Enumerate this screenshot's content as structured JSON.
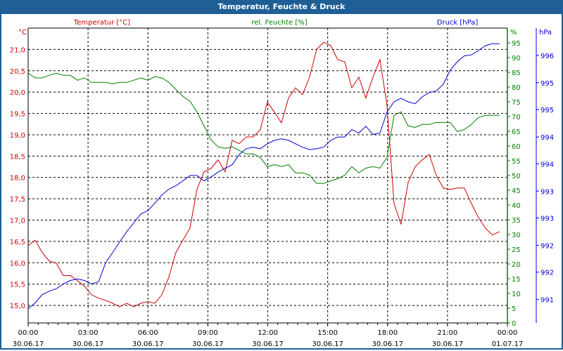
{
  "window": {
    "title": "Temperatur, Feucht e & Druck"
  },
  "chart_data": {
    "type": "line",
    "title": "Temperatur, Feuchte & Druck",
    "start": "00:00 30.06.17",
    "sample_interval_minutes": 21.14,
    "x_ticks": [
      {
        "time": "00:00",
        "date": "30.06.17",
        "hour": 0
      },
      {
        "time": "03:00",
        "date": "30.06.17",
        "hour": 3
      },
      {
        "time": "06:00",
        "date": "30.06.17",
        "hour": 6
      },
      {
        "time": "09:00",
        "date": "30.06.17",
        "hour": 9
      },
      {
        "time": "12:00",
        "date": "30.06.17",
        "hour": 12
      },
      {
        "time": "15:00",
        "date": "30.06.17",
        "hour": 15
      },
      {
        "time": "18:00",
        "date": "30.06.17",
        "hour": 18
      },
      {
        "time": "21:00",
        "date": "30.06.17",
        "hour": 21
      },
      {
        "time": "00:00",
        "date": "01.07.17",
        "hour": 24
      }
    ],
    "xlim_hours": [
      0,
      24
    ],
    "grid": true,
    "axes": {
      "temperature": {
        "label": "Temperatur [°C]",
        "unit": "°C",
        "color": "#cc0000",
        "ylim": [
          14.59,
          21.5
        ],
        "ticks": [
          15.0,
          15.5,
          16.0,
          16.5,
          17.0,
          17.5,
          18.0,
          18.5,
          19.0,
          19.5,
          20.0,
          20.5,
          21.0
        ],
        "tick_labels": [
          "15,0",
          "15,5",
          "16,0",
          "16,5",
          "17,0",
          "17,5",
          "18,0",
          "18,5",
          "19,0",
          "19,5",
          "20,0",
          "20,5",
          "21,0"
        ]
      },
      "humidity": {
        "label": "rel. Feuchte [%]",
        "unit": "%",
        "color": "#008000",
        "ylim": [
          0,
          100
        ],
        "ticks": [
          0,
          5,
          10,
          15,
          20,
          25,
          30,
          35,
          40,
          45,
          50,
          55,
          60,
          65,
          70,
          75,
          80,
          85,
          90,
          95
        ],
        "tick_labels": [
          "0",
          "5",
          "10",
          "15",
          "20",
          "25",
          "30",
          "35",
          "40",
          "45",
          "50",
          "55",
          "60",
          "65",
          "70",
          "75",
          "80",
          "85",
          "90",
          "95"
        ]
      },
      "pressure": {
        "label": "Druck [hPa]",
        "unit": "hPa",
        "color": "#0000cc",
        "ylim": [
          990.52,
          996.56
        ],
        "ticks": [
          991.0,
          991.56,
          992.11,
          992.67,
          993.22,
          993.78,
          994.33,
          994.89,
          995.44,
          996.0
        ],
        "tick_labels": [
          "991",
          "992",
          "992",
          "993",
          "993",
          "994",
          "994",
          "995",
          "995",
          "996"
        ]
      }
    },
    "series": [
      {
        "name": "Temperatur",
        "axis": "temperature",
        "color": "#cc0000",
        "values": [
          16.4,
          16.53,
          16.24,
          16.04,
          15.99,
          15.7,
          15.7,
          15.58,
          15.45,
          15.25,
          15.17,
          15.12,
          15.05,
          14.97,
          15.05,
          14.97,
          15.05,
          15.09,
          15.05,
          15.25,
          15.66,
          16.24,
          16.53,
          16.81,
          17.72,
          18.13,
          18.21,
          18.41,
          18.13,
          18.87,
          18.79,
          18.95,
          18.95,
          19.12,
          19.77,
          19.53,
          19.28,
          19.86,
          20.1,
          19.94,
          20.35,
          21.0,
          21.17,
          21.09,
          20.76,
          20.71,
          20.1,
          20.35,
          19.86,
          20.35,
          20.76,
          19.69,
          17.39,
          16.9,
          17.88,
          18.25,
          18.41,
          18.54,
          18.05,
          17.75,
          17.72,
          17.75,
          17.75,
          17.39,
          17.06,
          16.81,
          16.65,
          16.73
        ]
      },
      {
        "name": "rel. Feuchte",
        "axis": "humidity",
        "color": "#008000",
        "values": [
          84.7,
          83.1,
          83.1,
          84.0,
          84.7,
          84.0,
          84.0,
          82.3,
          83.1,
          81.6,
          81.6,
          81.6,
          81.1,
          81.6,
          81.6,
          82.3,
          83.1,
          82.3,
          83.5,
          83.1,
          81.6,
          79.2,
          76.8,
          75.2,
          71.6,
          66.8,
          62.1,
          59.7,
          59.2,
          59.7,
          58.5,
          57.3,
          57.3,
          56.1,
          53.0,
          53.7,
          53.0,
          53.7,
          50.9,
          50.9,
          50.1,
          47.3,
          47.3,
          48.2,
          48.9,
          50.1,
          53.0,
          50.9,
          52.5,
          53.0,
          52.5,
          56.1,
          70.4,
          71.6,
          66.8,
          66.3,
          67.3,
          67.3,
          68.0,
          68.0,
          68.0,
          64.9,
          65.6,
          67.3,
          69.7,
          70.4,
          70.4,
          70.4
        ]
      },
      {
        "name": "Druck",
        "axis": "pressure",
        "color": "#0000cc",
        "values": [
          990.81,
          990.93,
          991.1,
          991.17,
          991.22,
          991.32,
          991.39,
          991.42,
          991.39,
          991.32,
          991.36,
          991.75,
          991.96,
          992.18,
          992.39,
          992.57,
          992.75,
          992.82,
          992.97,
          993.14,
          993.26,
          993.33,
          993.43,
          993.54,
          993.54,
          993.43,
          993.51,
          993.61,
          993.69,
          993.76,
          993.97,
          994.09,
          994.12,
          994.09,
          994.19,
          994.26,
          994.29,
          994.26,
          994.19,
          994.12,
          994.07,
          994.09,
          994.12,
          994.26,
          994.33,
          994.33,
          994.48,
          994.41,
          994.55,
          994.38,
          994.41,
          994.84,
          995.05,
          995.12,
          995.05,
          995.01,
          995.15,
          995.24,
          995.27,
          995.41,
          995.7,
          995.87,
          995.99,
          996.01,
          996.1,
          996.2,
          996.24,
          996.24
        ]
      }
    ]
  }
}
